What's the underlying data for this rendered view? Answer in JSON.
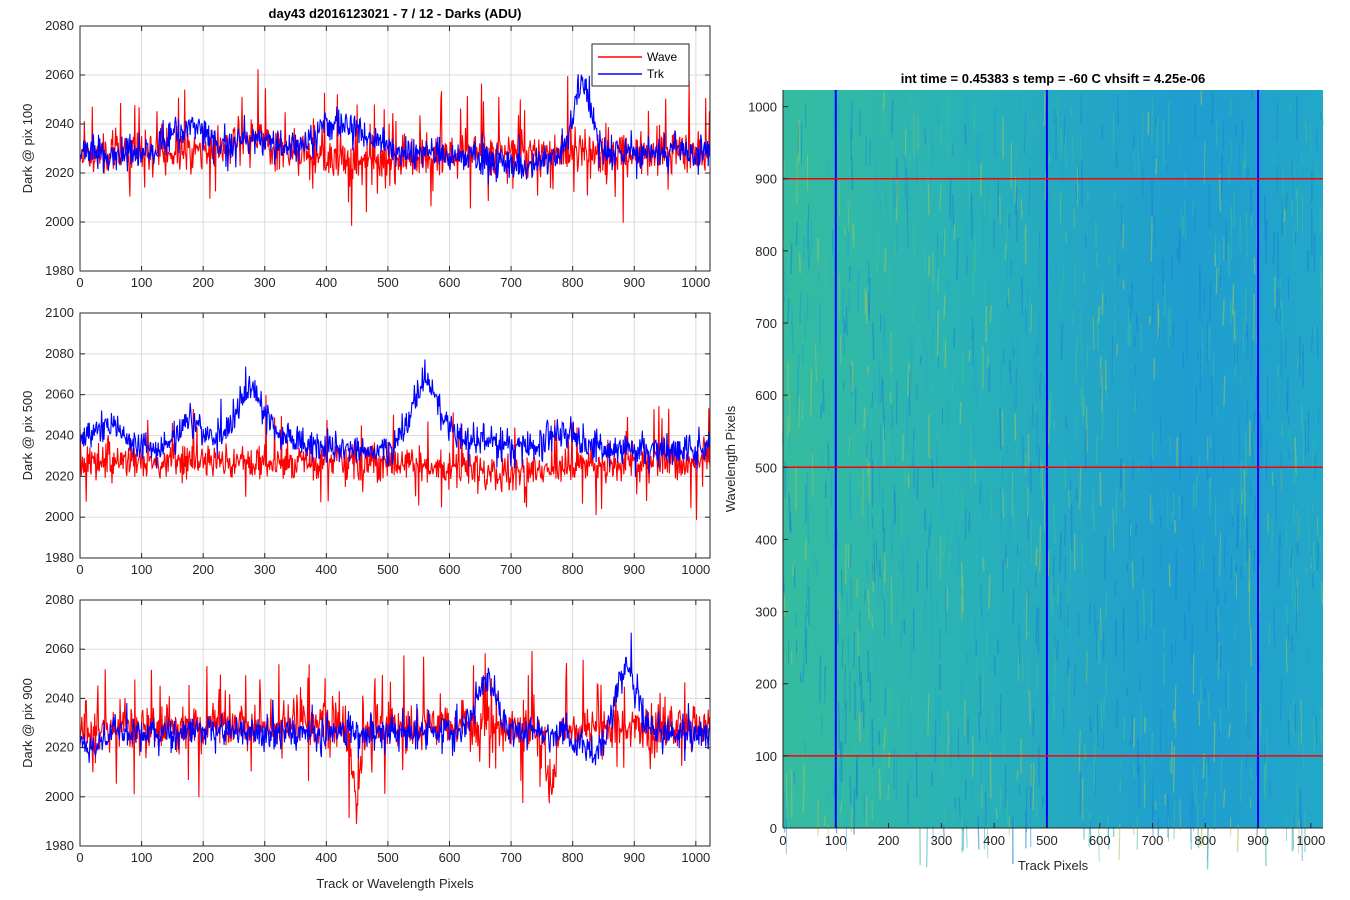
{
  "figure_title": "day43 d2016123021 - 7 / 12 - Darks (ADU)",
  "chart_data": [
    {
      "type": "line",
      "ylabel": "Dark @ pix 100",
      "xlabel": "",
      "xlim": [
        0,
        1023
      ],
      "ylim": [
        1980,
        2080
      ],
      "yticks": [
        1980,
        2000,
        2020,
        2040,
        2060,
        2080
      ],
      "xticks": [
        0,
        100,
        200,
        300,
        400,
        500,
        600,
        700,
        800,
        900,
        1000
      ],
      "grid": true,
      "legend": "top-right",
      "series": [
        {
          "name": "Wave",
          "color": "#ff0000",
          "base": 2028,
          "noise": 8,
          "spike_rate": 0.08,
          "spike_amp": 22,
          "features": [
            [
              270,
              60,
              6
            ],
            [
              460,
              80,
              -4
            ]
          ],
          "seed": 11
        },
        {
          "name": "Trk",
          "color": "#0000ff",
          "base": 2028,
          "noise": 6,
          "spike_rate": 0.02,
          "spike_amp": 10,
          "features": [
            [
              180,
              40,
              12
            ],
            [
              290,
              40,
              6
            ],
            [
              420,
              60,
              12
            ],
            [
              815,
              20,
              28
            ],
            [
              700,
              60,
              -6
            ]
          ],
          "seed": 23
        }
      ]
    },
    {
      "type": "line",
      "ylabel": "Dark @ pix 500",
      "xlabel": "",
      "xlim": [
        0,
        1023
      ],
      "ylim": [
        1980,
        2100
      ],
      "yticks": [
        1980,
        2000,
        2020,
        2040,
        2060,
        2080,
        2100
      ],
      "xticks": [
        0,
        100,
        200,
        300,
        400,
        500,
        600,
        700,
        800,
        900,
        1000
      ],
      "grid": true,
      "series": [
        {
          "name": "Wave",
          "color": "#ff0000",
          "base": 2027,
          "noise": 8,
          "spike_rate": 0.06,
          "spike_amp": 22,
          "features": [
            [
              690,
              120,
              -5
            ]
          ],
          "seed": 37
        },
        {
          "name": "Trk",
          "color": "#0000ff",
          "base": 2033,
          "noise": 7,
          "spike_rate": 0.02,
          "spike_amp": 12,
          "features": [
            [
              40,
              40,
              12
            ],
            [
              180,
              30,
              14
            ],
            [
              275,
              30,
              22
            ],
            [
              560,
              30,
              30
            ],
            [
              300,
              80,
              8
            ],
            [
              610,
              60,
              6
            ],
            [
              780,
              40,
              8
            ]
          ],
          "seed": 53
        }
      ]
    },
    {
      "type": "line",
      "ylabel": "Dark @ pix 900",
      "xlabel": "Track or Wavelength Pixels",
      "xlim": [
        0,
        1023
      ],
      "ylim": [
        1980,
        2080
      ],
      "yticks": [
        1980,
        2000,
        2020,
        2040,
        2060,
        2080
      ],
      "xticks": [
        0,
        100,
        200,
        300,
        400,
        500,
        600,
        700,
        800,
        900,
        1000
      ],
      "grid": true,
      "series": [
        {
          "name": "Wave",
          "color": "#ff0000",
          "base": 2028,
          "noise": 9,
          "spike_rate": 0.09,
          "spike_amp": 22,
          "features": [
            [
              450,
              10,
              -30
            ],
            [
              765,
              10,
              -25
            ]
          ],
          "seed": 71
        },
        {
          "name": "Trk",
          "color": "#0000ff",
          "base": 2026,
          "noise": 6,
          "spike_rate": 0.02,
          "spike_amp": 10,
          "features": [
            [
              660,
              25,
              22
            ],
            [
              885,
              25,
              30
            ],
            [
              850,
              40,
              -8
            ],
            [
              20,
              20,
              -6
            ]
          ],
          "seed": 89
        }
      ]
    },
    {
      "type": "heatmap",
      "title": "int time = 0.45383 s    temp = -60 C    vhsift = 4.25e-06",
      "xlabel": "Track Pixels",
      "ylabel": "Wavelength Pixels",
      "xlim": [
        0,
        1023
      ],
      "ylim": [
        0,
        1023
      ],
      "xticks": [
        0,
        100,
        200,
        300,
        400,
        500,
        600,
        700,
        800,
        900,
        1000
      ],
      "yticks": [
        0,
        100,
        200,
        300,
        400,
        500,
        600,
        700,
        800,
        900,
        1000
      ],
      "colormap": [
        "#1a7fd6",
        "#1fa3cf",
        "#27b5b2",
        "#3fbf9a",
        "#9ec85a"
      ],
      "vertical_lines": {
        "values": [
          100,
          500,
          900
        ],
        "color": "#0000ff"
      },
      "horizontal_lines": {
        "values": [
          100,
          500,
          900
        ],
        "color": "#ff0000"
      }
    }
  ]
}
